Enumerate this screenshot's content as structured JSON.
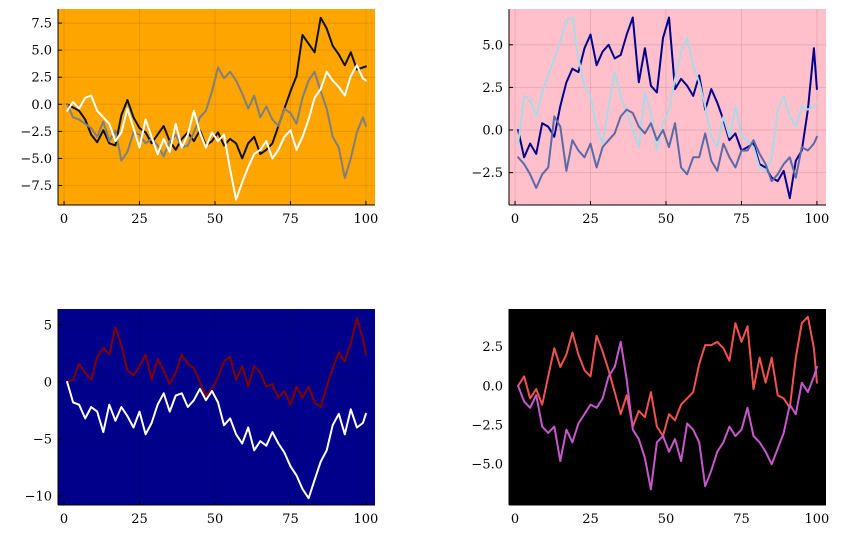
{
  "chart_data": [
    {
      "type": "line",
      "background": "#ffa500",
      "xlim": [
        -2,
        103
      ],
      "ylim": [
        -9.3,
        8.8
      ],
      "xticks": [
        0,
        25,
        50,
        75,
        100
      ],
      "xtick_labels": [
        "0",
        "25",
        "50",
        "75",
        "100"
      ],
      "yticks": [
        -7.5,
        -5.0,
        -2.5,
        0.0,
        2.5,
        5.0,
        7.5
      ],
      "ytick_labels": [
        "−7.5",
        "−5.0",
        "−2.5",
        "0.0",
        "2.5",
        "5.0",
        "7.5"
      ],
      "grid": true,
      "x": [
        1,
        3,
        5,
        7,
        9,
        11,
        13,
        15,
        17,
        19,
        21,
        23,
        25,
        27,
        29,
        31,
        33,
        35,
        37,
        39,
        41,
        43,
        45,
        47,
        49,
        51,
        53,
        55,
        57,
        59,
        61,
        63,
        65,
        67,
        69,
        71,
        73,
        75,
        77,
        79,
        81,
        83,
        85,
        87,
        89,
        91,
        93,
        95,
        97,
        99,
        100
      ],
      "series": [
        {
          "color": "#111111",
          "values": [
            0,
            -0.3,
            -0.6,
            -1.4,
            -2.8,
            -3.5,
            -2.4,
            -3.6,
            -3.8,
            -1.0,
            0.4,
            -1.2,
            -2.2,
            -2.6,
            -3.6,
            -2.8,
            -2.0,
            -3.4,
            -4.2,
            -3.2,
            -2.6,
            -3.4,
            -2.4,
            -3.8,
            -3.4,
            -2.6,
            -3.8,
            -3.2,
            -3.6,
            -5.0,
            -3.6,
            -3.0,
            -4.6,
            -4.2,
            -3.6,
            -2.0,
            -0.4,
            1.2,
            2.6,
            6.4,
            5.6,
            4.8,
            8.0,
            7.0,
            5.4,
            4.6,
            3.6,
            4.8,
            3.2,
            3.4,
            3.5
          ]
        },
        {
          "color": "#7f7f7f",
          "values": [
            0,
            -1.2,
            -1.4,
            -1.8,
            -2.2,
            -3.0,
            -1.6,
            -3.4,
            -2.4,
            -5.2,
            -4.4,
            -2.6,
            -2.8,
            -3.6,
            -3.2,
            -3.8,
            -4.8,
            -3.4,
            -2.8,
            -4.0,
            -3.8,
            -2.6,
            -1.2,
            -0.6,
            1.2,
            3.4,
            2.4,
            3.0,
            2.2,
            1.0,
            -0.4,
            0.8,
            -1.2,
            -0.2,
            -1.4,
            -2.0,
            -0.4,
            -0.8,
            -1.8,
            0.6,
            2.2,
            3.0,
            1.2,
            -0.4,
            -3.0,
            -4.0,
            -6.8,
            -5.0,
            -2.6,
            -1.2,
            -2.0
          ]
        },
        {
          "color": "#ffffff",
          "values": [
            -0.6,
            0.2,
            -0.4,
            0.6,
            0.8,
            -0.6,
            -1.2,
            -1.8,
            -3.4,
            -2.6,
            -0.4,
            -2.2,
            -4.0,
            -1.4,
            -3.0,
            -4.6,
            -3.2,
            -4.4,
            -1.8,
            -4.0,
            -2.8,
            -0.6,
            -2.6,
            -4.0,
            -2.6,
            -3.4,
            -2.8,
            -6.0,
            -8.8,
            -7.2,
            -5.8,
            -4.6,
            -4.2,
            -3.4,
            -5.0,
            -4.2,
            -3.0,
            -2.4,
            -4.2,
            -3.0,
            -1.4,
            0.6,
            1.4,
            3.0,
            2.2,
            1.6,
            0.8,
            2.6,
            3.6,
            2.4,
            2.2
          ]
        }
      ]
    },
    {
      "type": "line",
      "background": "#ffc0cb",
      "xlim": [
        -2,
        103
      ],
      "ylim": [
        -4.4,
        7.1
      ],
      "xticks": [
        0,
        25,
        50,
        75,
        100
      ],
      "xtick_labels": [
        "0",
        "25",
        "50",
        "75",
        "100"
      ],
      "yticks": [
        -2.5,
        0.0,
        2.5,
        5.0
      ],
      "ytick_labels": [
        "−2.5",
        "0.0",
        "2.5",
        "5.0"
      ],
      "grid": true,
      "x": [
        1,
        3,
        5,
        7,
        9,
        11,
        13,
        15,
        17,
        19,
        21,
        23,
        25,
        27,
        29,
        31,
        33,
        35,
        37,
        39,
        41,
        43,
        45,
        47,
        49,
        51,
        53,
        55,
        57,
        59,
        61,
        63,
        65,
        67,
        69,
        71,
        73,
        75,
        77,
        79,
        81,
        83,
        85,
        87,
        89,
        91,
        93,
        95,
        97,
        99,
        100
      ],
      "series": [
        {
          "color": "#00008b",
          "values": [
            0,
            -1.6,
            -0.8,
            -1.4,
            0.4,
            0.2,
            -0.4,
            1.4,
            2.8,
            3.6,
            3.4,
            4.8,
            5.6,
            3.8,
            4.6,
            5.0,
            4.2,
            4.4,
            5.6,
            6.6,
            2.8,
            4.8,
            2.6,
            2.2,
            5.4,
            6.6,
            2.4,
            3.0,
            2.6,
            2.0,
            3.2,
            1.2,
            2.4,
            1.6,
            0.6,
            -0.6,
            -0.2,
            -1.2,
            -1.0,
            -0.8,
            -2.0,
            -2.2,
            -2.8,
            -3.0,
            -2.4,
            -4.0,
            -1.8,
            -1.2,
            1.2,
            4.8,
            2.4
          ]
        },
        {
          "color": "#add8e6",
          "values": [
            -0.8,
            2.0,
            1.8,
            0.8,
            2.2,
            3.2,
            4.2,
            5.2,
            6.4,
            6.6,
            4.2,
            2.6,
            2.0,
            0.2,
            -0.8,
            1.4,
            3.4,
            2.0,
            1.0,
            0.0,
            -1.0,
            2.2,
            1.0,
            -1.2,
            0.4,
            1.2,
            3.0,
            4.6,
            5.4,
            3.8,
            2.8,
            1.4,
            -0.4,
            -1.0,
            0.8,
            -0.4,
            1.4,
            -0.4,
            -0.6,
            -1.0,
            -2.2,
            -2.4,
            -1.6,
            1.2,
            2.0,
            0.8,
            0.2,
            1.4,
            1.2,
            1.4,
            1.6
          ]
        },
        {
          "color": "#5a6aa8",
          "values": [
            -1.6,
            -2.0,
            -2.6,
            -3.4,
            -2.6,
            -2.2,
            0.8,
            0.2,
            -2.4,
            -0.6,
            -1.2,
            -1.6,
            -0.8,
            -2.2,
            -1.0,
            -0.6,
            -0.2,
            0.8,
            1.2,
            1.0,
            0.2,
            -0.2,
            0.4,
            -0.6,
            0.0,
            -1.0,
            0.4,
            -2.2,
            -2.6,
            -1.6,
            -1.6,
            -0.2,
            -1.8,
            -2.4,
            -0.8,
            -1.6,
            -2.2,
            -1.2,
            -1.2,
            -0.6,
            -1.4,
            -2.0,
            -3.0,
            -2.6,
            -2.0,
            -1.6,
            -2.8,
            -1.0,
            -1.2,
            -0.8,
            -0.4
          ]
        }
      ]
    },
    {
      "type": "line",
      "background": "#00008b",
      "xlim": [
        -2,
        103
      ],
      "ylim": [
        -10.8,
        6.4
      ],
      "xticks": [
        0,
        25,
        50,
        75,
        100
      ],
      "xtick_labels": [
        "0",
        "25",
        "50",
        "75",
        "100"
      ],
      "yticks": [
        -10,
        -5,
        0,
        5
      ],
      "ytick_labels": [
        "−10",
        "−5",
        "0",
        "5"
      ],
      "grid": true,
      "x": [
        1,
        3,
        5,
        7,
        9,
        11,
        13,
        15,
        17,
        19,
        21,
        23,
        25,
        27,
        29,
        31,
        33,
        35,
        37,
        39,
        41,
        43,
        45,
        47,
        49,
        51,
        53,
        55,
        57,
        59,
        61,
        63,
        65,
        67,
        69,
        71,
        73,
        75,
        77,
        79,
        81,
        83,
        85,
        87,
        89,
        91,
        93,
        95,
        97,
        99,
        100
      ],
      "series": [
        {
          "color": "#800000",
          "values": [
            0,
            0.2,
            1.6,
            0.8,
            0.2,
            2.2,
            3.0,
            2.4,
            4.8,
            3.2,
            1.0,
            0.6,
            1.4,
            2.4,
            0.2,
            2.0,
            1.0,
            -0.2,
            0.8,
            2.4,
            1.6,
            1.2,
            0.0,
            -1.2,
            -0.6,
            0.4,
            1.8,
            2.2,
            0.2,
            1.4,
            -0.4,
            1.4,
            0.8,
            -0.4,
            -0.2,
            -1.4,
            -0.8,
            -2.0,
            -0.4,
            -1.4,
            -0.4,
            -1.8,
            -2.2,
            -0.4,
            1.2,
            2.6,
            1.8,
            3.4,
            5.6,
            3.8,
            2.4
          ]
        },
        {
          "color": "#ffffff",
          "values": [
            0,
            -1.8,
            -2.0,
            -3.2,
            -2.2,
            -2.6,
            -4.4,
            -2.0,
            -3.4,
            -2.2,
            -3.0,
            -4.0,
            -2.6,
            -4.6,
            -3.6,
            -2.0,
            -1.0,
            -2.6,
            -1.2,
            -1.0,
            -2.2,
            -1.6,
            -0.6,
            -1.6,
            -0.8,
            -1.8,
            -3.8,
            -3.2,
            -4.6,
            -5.4,
            -4.0,
            -6.0,
            -5.2,
            -5.6,
            -4.4,
            -5.4,
            -6.2,
            -7.4,
            -8.2,
            -9.4,
            -10.2,
            -8.6,
            -7.0,
            -6.0,
            -3.8,
            -2.8,
            -4.6,
            -2.4,
            -4.0,
            -3.6,
            -2.8
          ]
        }
      ]
    },
    {
      "type": "line",
      "background": "#000000",
      "xlim": [
        -2,
        103
      ],
      "ylim": [
        -7.6,
        4.9
      ],
      "xticks": [
        0,
        25,
        50,
        75,
        100
      ],
      "xtick_labels": [
        "0",
        "25",
        "50",
        "75",
        "100"
      ],
      "yticks": [
        -5.0,
        -2.5,
        0.0,
        2.5
      ],
      "ytick_labels": [
        "−5.0",
        "−2.5",
        "0.0",
        "2.5"
      ],
      "grid": true,
      "x": [
        1,
        3,
        5,
        7,
        9,
        11,
        13,
        15,
        17,
        19,
        21,
        23,
        25,
        27,
        29,
        31,
        33,
        35,
        37,
        39,
        41,
        43,
        45,
        47,
        49,
        51,
        53,
        55,
        57,
        59,
        61,
        63,
        65,
        67,
        69,
        71,
        73,
        75,
        77,
        79,
        81,
        83,
        85,
        87,
        89,
        91,
        93,
        95,
        97,
        99,
        100
      ],
      "series": [
        {
          "color": "#f0524f",
          "values": [
            0,
            0.6,
            -0.8,
            -0.2,
            -1.2,
            0.6,
            2.4,
            1.2,
            2.0,
            3.4,
            2.0,
            1.0,
            0.6,
            3.2,
            2.2,
            1.0,
            -0.4,
            -1.8,
            -0.6,
            -2.6,
            -1.6,
            -2.0,
            -0.4,
            -2.6,
            -3.2,
            -1.8,
            -2.2,
            -1.2,
            -0.8,
            -0.4,
            1.4,
            2.6,
            2.6,
            2.8,
            2.4,
            1.6,
            4.0,
            2.8,
            3.8,
            -0.2,
            1.8,
            0.2,
            1.8,
            -0.6,
            -0.8,
            -1.4,
            1.8,
            4.0,
            4.4,
            2.4,
            0.2
          ]
        },
        {
          "color": "#c659c9",
          "values": [
            0,
            -1.0,
            -1.4,
            -0.6,
            -2.6,
            -3.0,
            -2.6,
            -4.8,
            -2.8,
            -3.6,
            -2.4,
            -1.8,
            -1.2,
            -1.4,
            -0.8,
            0.6,
            1.2,
            2.8,
            0.4,
            -2.8,
            -3.4,
            -4.6,
            -6.6,
            -3.6,
            -3.2,
            -4.2,
            -3.4,
            -4.8,
            -2.4,
            -2.8,
            -3.6,
            -6.4,
            -5.4,
            -4.2,
            -3.6,
            -2.6,
            -3.2,
            -2.8,
            -1.4,
            -3.2,
            -3.6,
            -4.2,
            -5.0,
            -4.0,
            -3.0,
            -1.2,
            -1.8,
            0.2,
            -0.4,
            0.6,
            1.2
          ]
        }
      ]
    }
  ]
}
